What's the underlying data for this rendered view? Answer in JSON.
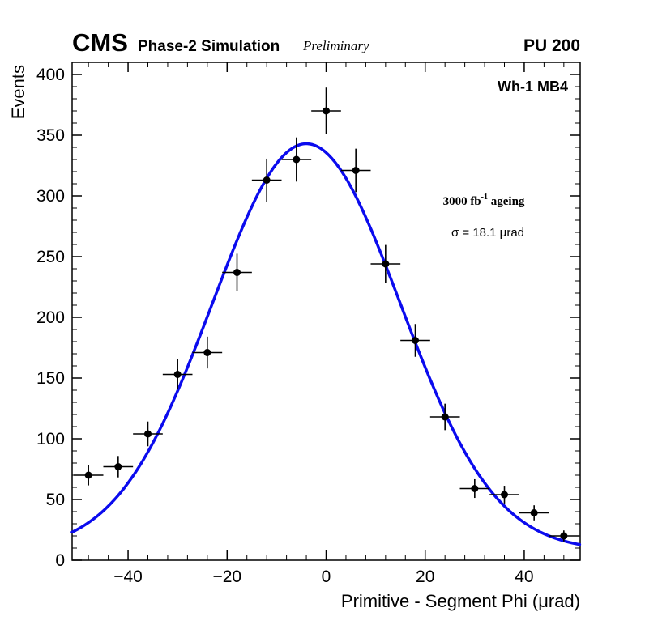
{
  "header": {
    "experiment": "CMS",
    "subtitle": "Phase-2 Simulation",
    "preliminary": "Preliminary",
    "pileup": "PU 200"
  },
  "annotations": {
    "chamber": "Wh-1 MB4",
    "ageing_prefix": "3000 fb",
    "ageing_sup": "-1",
    "ageing_suffix": " ageing",
    "sigma_text": "σ = 18.1 μrad"
  },
  "chart_data": {
    "type": "scatter",
    "title": "",
    "xlabel": "Primitive - Segment Phi (μrad)",
    "ylabel": "Events",
    "xlim": [
      -51.3,
      51.3
    ],
    "ylim": [
      0,
      410
    ],
    "x_ticks": [
      -40,
      -20,
      0,
      20,
      40
    ],
    "y_ticks": [
      0,
      50,
      100,
      150,
      200,
      250,
      300,
      350,
      400
    ],
    "x_minor_step": 4,
    "y_minor_step": 10,
    "grid": false,
    "legend_position": "none",
    "background": "#ffffff",
    "frame_color": "#000000",
    "points": {
      "x": [
        -48,
        -42,
        -36,
        -30,
        -24,
        -18,
        -12,
        -6,
        0,
        6,
        12,
        18,
        24,
        30,
        36,
        42,
        48
      ],
      "y": [
        70,
        77,
        104,
        153,
        171,
        237,
        313,
        330,
        370,
        321,
        244,
        181,
        118,
        59,
        54,
        39,
        20
      ],
      "y_err": [
        8.4,
        8.8,
        10.2,
        12.4,
        13.1,
        15.4,
        17.7,
        18.2,
        19.2,
        17.9,
        15.6,
        13.5,
        10.9,
        7.7,
        7.3,
        6.2,
        4.5
      ],
      "x_err": 3,
      "marker": {
        "shape": "circle",
        "radius": 4.5,
        "color": "#000000"
      }
    },
    "fit": {
      "type": "gaussian",
      "label_sigma_urad": 18.1,
      "color": "#0b0bee",
      "line_width": 3.5,
      "draw": {
        "amplitude": 335,
        "mean": -4,
        "sigma": 19,
        "constant": 8
      }
    }
  }
}
